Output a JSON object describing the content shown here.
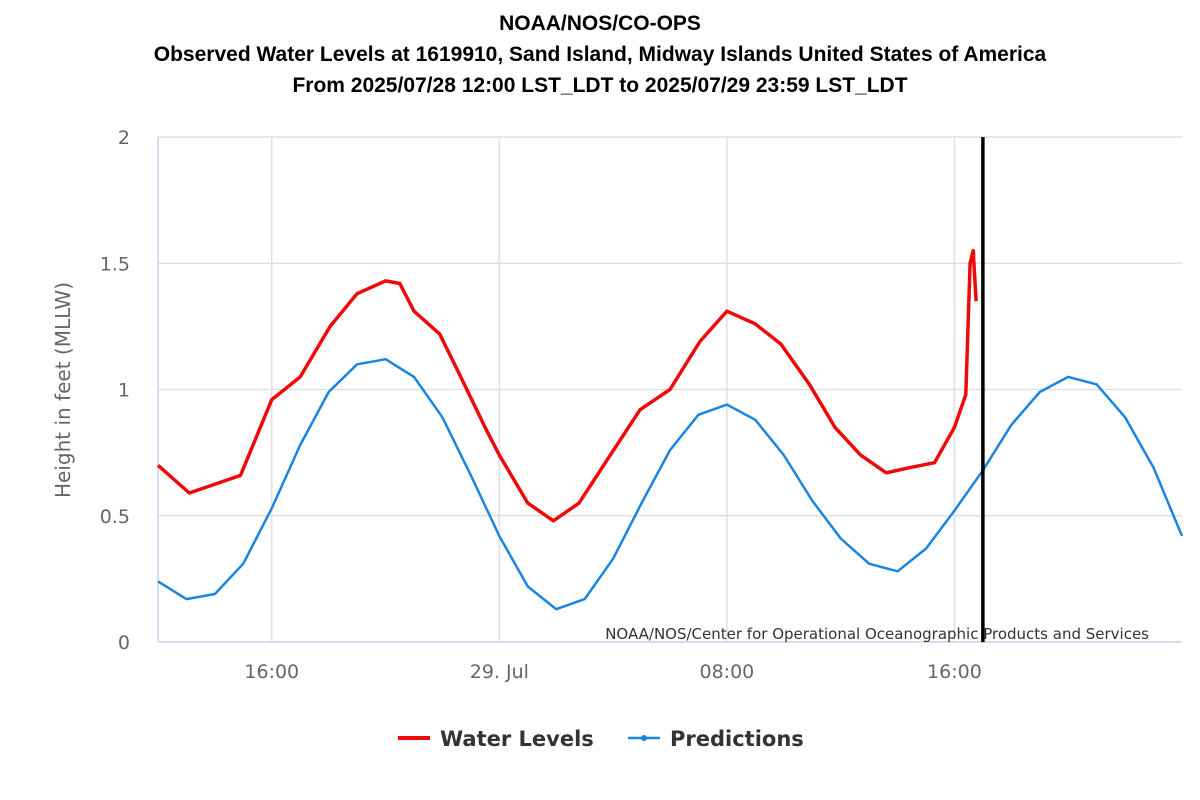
{
  "chart_data": {
    "type": "line",
    "title": "NOAA/NOS/CO-OPS",
    "subtitles": [
      "Observed Water Levels at 1619910, Sand Island, Midway Islands United States of America",
      "From 2025/07/28 12:00 LST_LDT to 2025/07/29 23:59 LST_LDT"
    ],
    "y_label": "Height in feet (MLLW)",
    "credits": "NOAA/NOS/Center for Operational Oceanographic Products and Services",
    "xlim": [
      12,
      48
    ],
    "xticks": [
      {
        "value": 16,
        "label": "16:00"
      },
      {
        "value": 24,
        "label": "29. Jul"
      },
      {
        "value": 32,
        "label": "08:00"
      },
      {
        "value": 40,
        "label": "16:00"
      }
    ],
    "ylim": [
      0,
      2
    ],
    "yticks": [
      0,
      0.5,
      1,
      1.5,
      2
    ],
    "grid": true,
    "legend": "bottom",
    "now_line": {
      "x": 41,
      "color": "#000000"
    },
    "series": [
      {
        "name": "Water Levels",
        "color": "#ee0a0a",
        "x": [
          12,
          13.1,
          14.9,
          16,
          17,
          18.05,
          19,
          20,
          20.5,
          21,
          21.9,
          22.6,
          23.5,
          24,
          25,
          25.9,
          26.8,
          27.9,
          28.95,
          30,
          31.05,
          32,
          33,
          33.9,
          34.9,
          35.8,
          36.7,
          37.6,
          38.4,
          39.3,
          40,
          40.4,
          40.55,
          40.66,
          40.76
        ],
        "values": [
          0.7,
          0.59,
          0.66,
          0.96,
          1.05,
          1.25,
          1.38,
          1.43,
          1.42,
          1.31,
          1.22,
          1.06,
          0.85,
          0.74,
          0.55,
          0.48,
          0.55,
          0.74,
          0.92,
          1.0,
          1.19,
          1.31,
          1.26,
          1.18,
          1.02,
          0.85,
          0.74,
          0.67,
          0.69,
          0.71,
          0.85,
          0.98,
          1.5,
          1.55,
          1.35
        ]
      },
      {
        "name": "Predictions",
        "color": "#1a85e0",
        "x": [
          12,
          13,
          14,
          15,
          16,
          17,
          18,
          19,
          20,
          21,
          22,
          23,
          24,
          25,
          26,
          27,
          28,
          29,
          30,
          31,
          32,
          33,
          34,
          35,
          36,
          37,
          38,
          39,
          40,
          41,
          42,
          43,
          44,
          45,
          46,
          47,
          48
        ],
        "values": [
          0.24,
          0.17,
          0.19,
          0.31,
          0.53,
          0.78,
          0.99,
          1.1,
          1.12,
          1.05,
          0.89,
          0.66,
          0.42,
          0.22,
          0.13,
          0.17,
          0.33,
          0.55,
          0.76,
          0.9,
          0.94,
          0.88,
          0.74,
          0.56,
          0.41,
          0.31,
          0.28,
          0.37,
          0.52,
          0.68,
          0.86,
          0.99,
          1.05,
          1.02,
          0.89,
          0.69,
          0.42
        ]
      }
    ]
  }
}
